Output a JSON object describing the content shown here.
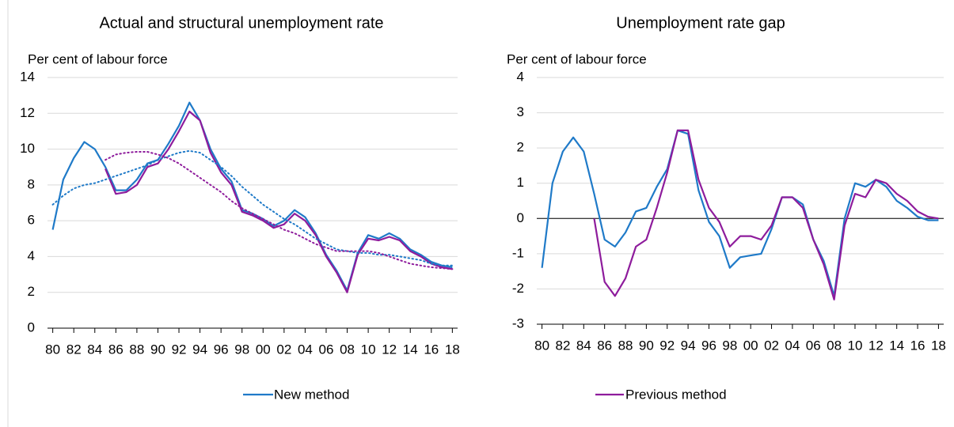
{
  "chart_data": [
    {
      "type": "line",
      "title": "Actual and structural unemployment rate",
      "y_label": "Per cent of labour force",
      "x": [
        1980,
        1981,
        1982,
        1983,
        1984,
        1985,
        1986,
        1987,
        1988,
        1989,
        1990,
        1991,
        1992,
        1993,
        1994,
        1995,
        1996,
        1997,
        1998,
        1999,
        2000,
        2001,
        2002,
        2003,
        2004,
        2005,
        2006,
        2007,
        2008,
        2009,
        2010,
        2011,
        2012,
        2013,
        2014,
        2015,
        2016,
        2017,
        2018
      ],
      "xlim": [
        1979.5,
        2018.5
      ],
      "xticks": [
        {
          "value": 1980,
          "label": "80"
        },
        {
          "value": 1982,
          "label": "82"
        },
        {
          "value": 1984,
          "label": "84"
        },
        {
          "value": 1986,
          "label": "86"
        },
        {
          "value": 1988,
          "label": "88"
        },
        {
          "value": 1990,
          "label": "90"
        },
        {
          "value": 1992,
          "label": "92"
        },
        {
          "value": 1994,
          "label": "94"
        },
        {
          "value": 1996,
          "label": "96"
        },
        {
          "value": 1998,
          "label": "98"
        },
        {
          "value": 2000,
          "label": "00"
        },
        {
          "value": 2002,
          "label": "02"
        },
        {
          "value": 2004,
          "label": "04"
        },
        {
          "value": 2006,
          "label": "06"
        },
        {
          "value": 2008,
          "label": "08"
        },
        {
          "value": 2010,
          "label": "10"
        },
        {
          "value": 2012,
          "label": "12"
        },
        {
          "value": 2014,
          "label": "14"
        },
        {
          "value": 2016,
          "label": "16"
        },
        {
          "value": 2018,
          "label": "18"
        }
      ],
      "ylim": [
        0,
        14
      ],
      "yticks": [
        0,
        2,
        4,
        6,
        8,
        10,
        12,
        14
      ],
      "grid": true,
      "zero_line": false,
      "series": [
        {
          "name": "New method",
          "color": "#1f7ac8",
          "dash": "solid",
          "values": [
            5.5,
            8.3,
            9.5,
            10.4,
            10.0,
            9.0,
            7.7,
            7.7,
            8.3,
            9.2,
            9.4,
            10.3,
            11.3,
            12.6,
            11.6,
            10.0,
            8.9,
            8.2,
            6.6,
            6.4,
            6.1,
            5.7,
            6.0,
            6.6,
            6.2,
            5.3,
            4.1,
            3.2,
            2.1,
            4.2,
            5.2,
            5.0,
            5.3,
            5.0,
            4.4,
            4.1,
            3.7,
            3.5,
            3.4
          ]
        },
        {
          "name": "Previous method",
          "color": "#8e1c9c",
          "dash": "solid",
          "values": [
            null,
            null,
            null,
            null,
            null,
            8.9,
            7.5,
            7.6,
            8.0,
            9.0,
            9.2,
            10.0,
            11.0,
            12.1,
            11.6,
            9.8,
            8.7,
            8.0,
            6.5,
            6.3,
            6.0,
            5.6,
            5.8,
            6.4,
            6.0,
            5.2,
            4.0,
            3.1,
            2.0,
            4.1,
            5.0,
            4.9,
            5.1,
            4.9,
            4.3,
            4.0,
            3.6,
            3.4,
            3.3
          ]
        },
        {
          "name": "New method",
          "color": "#1f7ac8",
          "dash": "dotted",
          "values": [
            6.9,
            7.4,
            7.8,
            8.0,
            8.1,
            8.3,
            8.5,
            8.7,
            8.9,
            9.1,
            9.4,
            9.6,
            9.8,
            9.9,
            9.8,
            9.4,
            9.0,
            8.5,
            7.9,
            7.4,
            6.9,
            6.5,
            6.1,
            5.8,
            5.4,
            5.0,
            4.7,
            4.4,
            4.3,
            4.2,
            4.2,
            4.1,
            4.1,
            4.0,
            3.9,
            3.8,
            3.6,
            3.5,
            3.5
          ]
        },
        {
          "name": "Previous method",
          "color": "#8e1c9c",
          "dash": "dotted",
          "values": [
            null,
            null,
            null,
            null,
            null,
            9.4,
            9.7,
            9.8,
            9.85,
            9.85,
            9.7,
            9.5,
            9.2,
            8.8,
            8.4,
            8.0,
            7.6,
            7.1,
            6.7,
            6.4,
            6.1,
            5.8,
            5.5,
            5.3,
            5.0,
            4.7,
            4.5,
            4.3,
            4.3,
            4.3,
            4.3,
            4.2,
            4.0,
            3.8,
            3.6,
            3.5,
            3.4,
            3.35,
            3.3
          ]
        }
      ]
    },
    {
      "type": "line",
      "title": "Unemployment rate gap",
      "y_label": "Per cent of labour force",
      "x": [
        1980,
        1981,
        1982,
        1983,
        1984,
        1985,
        1986,
        1987,
        1988,
        1989,
        1990,
        1991,
        1992,
        1993,
        1994,
        1995,
        1996,
        1997,
        1998,
        1999,
        2000,
        2001,
        2002,
        2003,
        2004,
        2005,
        2006,
        2007,
        2008,
        2009,
        2010,
        2011,
        2012,
        2013,
        2014,
        2015,
        2016,
        2017,
        2018
      ],
      "xlim": [
        1979.5,
        2018.5
      ],
      "xticks": [
        {
          "value": 1980,
          "label": "80"
        },
        {
          "value": 1982,
          "label": "82"
        },
        {
          "value": 1984,
          "label": "84"
        },
        {
          "value": 1986,
          "label": "86"
        },
        {
          "value": 1988,
          "label": "88"
        },
        {
          "value": 1990,
          "label": "90"
        },
        {
          "value": 1992,
          "label": "92"
        },
        {
          "value": 1994,
          "label": "94"
        },
        {
          "value": 1996,
          "label": "96"
        },
        {
          "value": 1998,
          "label": "98"
        },
        {
          "value": 2000,
          "label": "00"
        },
        {
          "value": 2002,
          "label": "02"
        },
        {
          "value": 2004,
          "label": "04"
        },
        {
          "value": 2006,
          "label": "06"
        },
        {
          "value": 2008,
          "label": "08"
        },
        {
          "value": 2010,
          "label": "10"
        },
        {
          "value": 2012,
          "label": "12"
        },
        {
          "value": 2014,
          "label": "14"
        },
        {
          "value": 2016,
          "label": "16"
        },
        {
          "value": 2018,
          "label": "18"
        }
      ],
      "ylim": [
        -3,
        4
      ],
      "yticks": [
        -3,
        -2,
        -1,
        0,
        1,
        2,
        3,
        4
      ],
      "grid": true,
      "zero_line": true,
      "series": [
        {
          "name": "New method",
          "color": "#1f7ac8",
          "dash": "solid",
          "values": [
            -1.4,
            1.0,
            1.9,
            2.3,
            1.9,
            0.7,
            -0.6,
            -0.8,
            -0.4,
            0.2,
            0.3,
            0.9,
            1.4,
            2.5,
            2.4,
            0.8,
            -0.1,
            -0.5,
            -1.4,
            -1.1,
            -1.05,
            -1.0,
            -0.3,
            0.6,
            0.6,
            0.4,
            -0.6,
            -1.2,
            -2.2,
            0.0,
            1.0,
            0.9,
            1.1,
            0.9,
            0.5,
            0.3,
            0.05,
            -0.05,
            -0.05
          ]
        },
        {
          "name": "Previous method",
          "color": "#8e1c9c",
          "dash": "solid",
          "values": [
            null,
            null,
            null,
            null,
            null,
            0.0,
            -1.8,
            -2.2,
            -1.7,
            -0.8,
            -0.6,
            0.3,
            1.3,
            2.5,
            2.5,
            1.1,
            0.3,
            -0.1,
            -0.8,
            -0.5,
            -0.5,
            -0.6,
            -0.2,
            0.6,
            0.6,
            0.3,
            -0.6,
            -1.3,
            -2.3,
            -0.2,
            0.7,
            0.6,
            1.1,
            1.0,
            0.7,
            0.5,
            0.2,
            0.05,
            0.0
          ]
        }
      ]
    }
  ]
}
